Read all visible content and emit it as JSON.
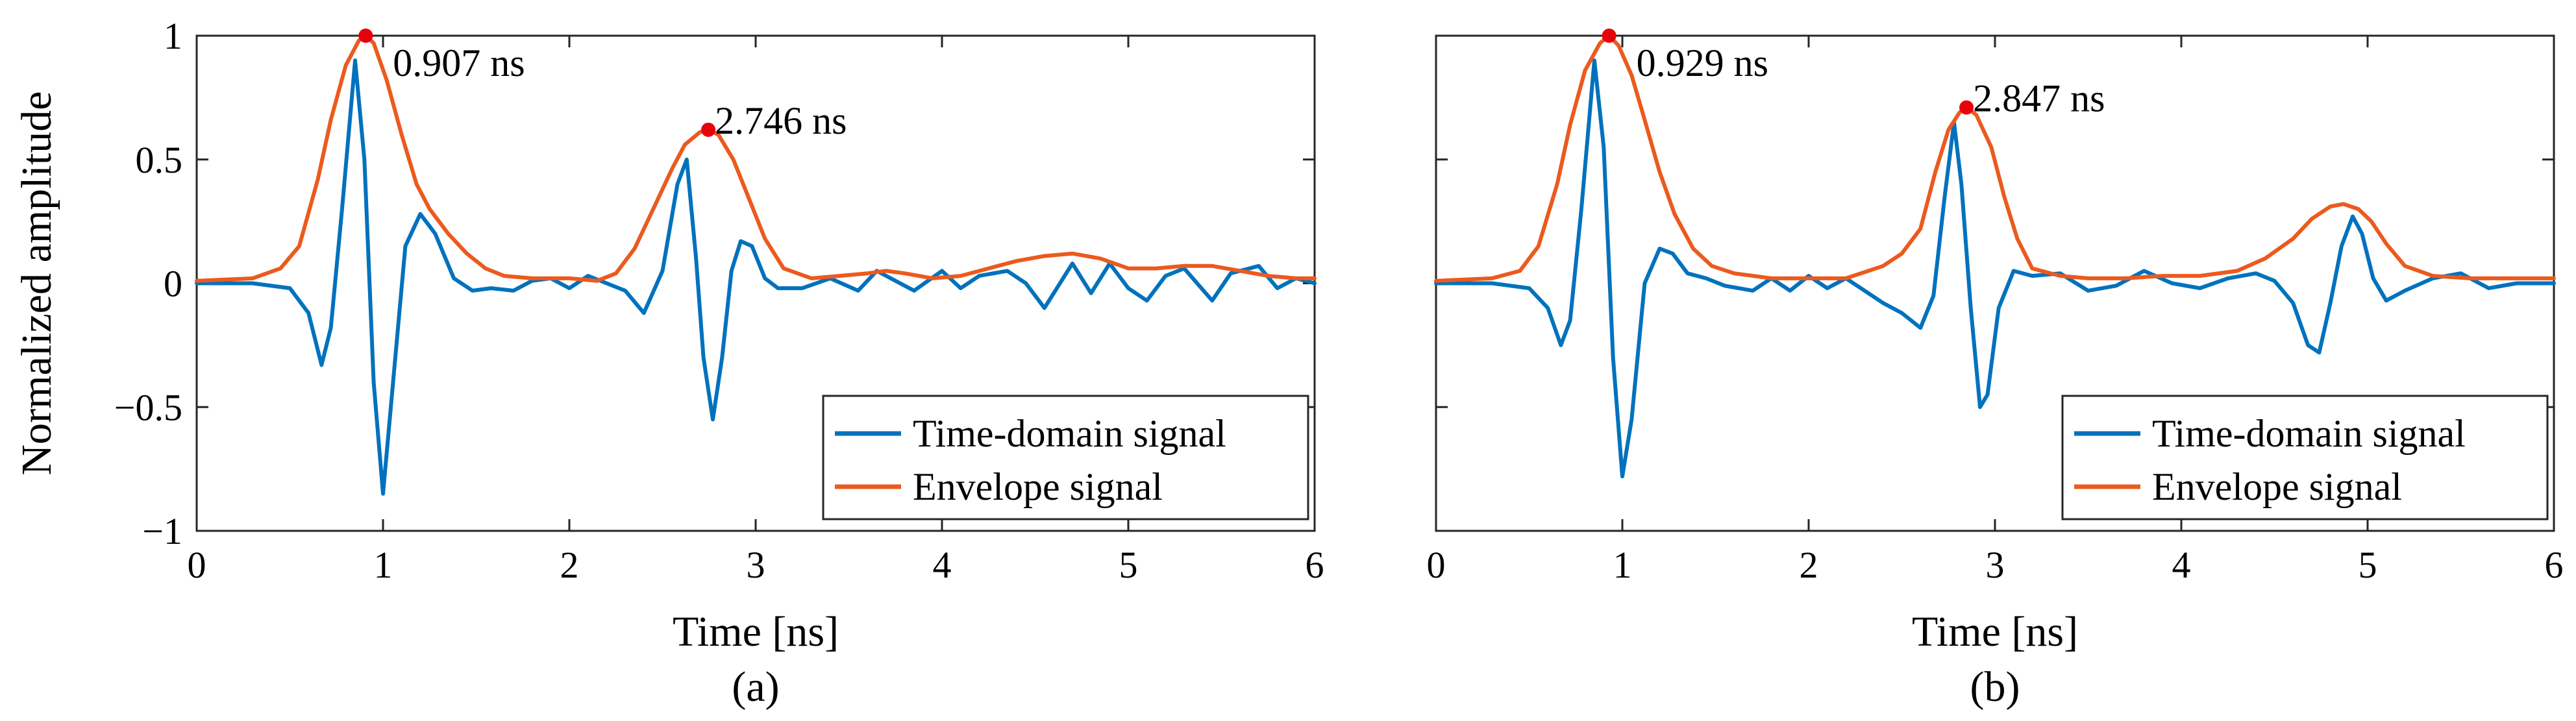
{
  "colors": {
    "time_domain": "#0072BD",
    "envelope": "#EB5A1E",
    "peak_marker": "#E8000B",
    "axis": "#262626"
  },
  "chart_data": [
    {
      "type": "line",
      "panel_label": "(a)",
      "xlabel": "Time [ns]",
      "ylabel": "Normalized amplitude",
      "xlim": [
        0,
        6
      ],
      "ylim": [
        -1,
        1
      ],
      "xticks": [
        "0",
        "1",
        "2",
        "3",
        "4",
        "5",
        "6"
      ],
      "yticks": [
        "−1",
        "−0.5",
        "0",
        "0.5",
        "1"
      ],
      "show_yticklabels": true,
      "grid": false,
      "legend_position": "bottom-right",
      "series": [
        {
          "name": "Time-domain signal",
          "x": [
            0,
            0.3,
            0.5,
            0.6,
            0.67,
            0.72,
            0.78,
            0.85,
            0.9,
            0.95,
            1.0,
            1.06,
            1.12,
            1.2,
            1.28,
            1.38,
            1.48,
            1.58,
            1.7,
            1.8,
            1.9,
            2.0,
            2.1,
            2.2,
            2.3,
            2.4,
            2.5,
            2.58,
            2.63,
            2.68,
            2.72,
            2.77,
            2.82,
            2.87,
            2.92,
            2.98,
            3.05,
            3.12,
            3.25,
            3.4,
            3.55,
            3.65,
            3.75,
            3.85,
            4.0,
            4.1,
            4.2,
            4.35,
            4.45,
            4.55,
            4.7,
            4.8,
            4.9,
            5.0,
            5.1,
            5.2,
            5.3,
            5.45,
            5.55,
            5.7,
            5.8,
            5.9,
            6.0
          ],
          "y": [
            0,
            0,
            -0.02,
            -0.12,
            -0.33,
            -0.18,
            0.3,
            0.9,
            0.5,
            -0.4,
            -0.85,
            -0.35,
            0.15,
            0.28,
            0.2,
            0.02,
            -0.03,
            -0.02,
            -0.03,
            0.01,
            0.02,
            -0.02,
            0.03,
            0.0,
            -0.03,
            -0.12,
            0.05,
            0.4,
            0.5,
            0.1,
            -0.3,
            -0.55,
            -0.3,
            0.05,
            0.17,
            0.15,
            0.02,
            -0.02,
            -0.02,
            0.02,
            -0.03,
            0.05,
            0.01,
            -0.03,
            0.05,
            -0.02,
            0.03,
            0.05,
            0.0,
            -0.1,
            0.08,
            -0.04,
            0.08,
            -0.02,
            -0.07,
            0.03,
            0.06,
            -0.07,
            0.04,
            0.07,
            -0.02,
            0.02,
            0.0
          ]
        },
        {
          "name": "Envelope signal",
          "x": [
            0,
            0.3,
            0.45,
            0.55,
            0.65,
            0.72,
            0.8,
            0.87,
            0.907,
            0.95,
            1.02,
            1.1,
            1.18,
            1.25,
            1.35,
            1.45,
            1.55,
            1.65,
            1.8,
            2.0,
            2.15,
            2.25,
            2.35,
            2.45,
            2.55,
            2.62,
            2.7,
            2.746,
            2.8,
            2.88,
            2.96,
            3.05,
            3.15,
            3.3,
            3.45,
            3.6,
            3.7,
            3.8,
            3.95,
            4.1,
            4.25,
            4.4,
            4.55,
            4.7,
            4.85,
            5.0,
            5.15,
            5.3,
            5.45,
            5.6,
            5.75,
            5.9,
            6.0
          ],
          "y": [
            0.01,
            0.02,
            0.06,
            0.15,
            0.42,
            0.66,
            0.88,
            0.98,
            1.0,
            0.97,
            0.82,
            0.6,
            0.4,
            0.3,
            0.2,
            0.12,
            0.06,
            0.03,
            0.02,
            0.02,
            0.01,
            0.04,
            0.14,
            0.3,
            0.46,
            0.56,
            0.61,
            0.62,
            0.6,
            0.5,
            0.35,
            0.18,
            0.06,
            0.02,
            0.03,
            0.04,
            0.05,
            0.04,
            0.02,
            0.03,
            0.06,
            0.09,
            0.11,
            0.12,
            0.1,
            0.06,
            0.06,
            0.07,
            0.07,
            0.05,
            0.03,
            0.02,
            0.02
          ]
        }
      ],
      "peaks": [
        {
          "x": 0.907,
          "y": 1.0,
          "label": "0.907 ns"
        },
        {
          "x": 2.746,
          "y": 0.62,
          "label": "2.746 ns"
        }
      ]
    },
    {
      "type": "line",
      "panel_label": "(b)",
      "xlabel": "Time [ns]",
      "ylabel": "",
      "xlim": [
        0,
        6
      ],
      "ylim": [
        -1,
        1
      ],
      "xticks": [
        "0",
        "1",
        "2",
        "3",
        "4",
        "5",
        "6"
      ],
      "yticks": [
        "−1",
        "−0.5",
        "0",
        "0.5",
        "1"
      ],
      "show_yticklabels": false,
      "grid": false,
      "legend_position": "bottom-right",
      "series": [
        {
          "name": "Time-domain signal",
          "x": [
            0,
            0.3,
            0.5,
            0.6,
            0.67,
            0.72,
            0.78,
            0.85,
            0.9,
            0.95,
            1.0,
            1.05,
            1.12,
            1.2,
            1.27,
            1.35,
            1.45,
            1.55,
            1.7,
            1.8,
            1.9,
            2.0,
            2.1,
            2.2,
            2.3,
            2.4,
            2.5,
            2.6,
            2.67,
            2.73,
            2.78,
            2.82,
            2.87,
            2.92,
            2.96,
            3.02,
            3.1,
            3.2,
            3.35,
            3.5,
            3.65,
            3.8,
            3.95,
            4.1,
            4.25,
            4.4,
            4.5,
            4.6,
            4.68,
            4.74,
            4.8,
            4.86,
            4.92,
            4.97,
            5.03,
            5.1,
            5.2,
            5.35,
            5.5,
            5.65,
            5.8,
            6.0
          ],
          "y": [
            0,
            0,
            -0.02,
            -0.1,
            -0.25,
            -0.15,
            0.3,
            0.9,
            0.55,
            -0.3,
            -0.78,
            -0.55,
            0.0,
            0.14,
            0.12,
            0.04,
            0.02,
            -0.01,
            -0.03,
            0.02,
            -0.03,
            0.03,
            -0.02,
            0.02,
            -0.03,
            -0.08,
            -0.12,
            -0.18,
            -0.05,
            0.35,
            0.65,
            0.4,
            -0.1,
            -0.5,
            -0.45,
            -0.1,
            0.05,
            0.03,
            0.04,
            -0.03,
            -0.01,
            0.05,
            0.0,
            -0.02,
            0.02,
            0.04,
            0.01,
            -0.08,
            -0.25,
            -0.28,
            -0.08,
            0.15,
            0.27,
            0.2,
            0.02,
            -0.07,
            -0.03,
            0.02,
            0.04,
            -0.02,
            0.0,
            0.0
          ]
        },
        {
          "name": "Envelope signal",
          "x": [
            0,
            0.3,
            0.45,
            0.55,
            0.65,
            0.72,
            0.8,
            0.88,
            0.929,
            0.98,
            1.05,
            1.12,
            1.2,
            1.28,
            1.38,
            1.48,
            1.6,
            1.8,
            2.0,
            2.2,
            2.4,
            2.5,
            2.6,
            2.68,
            2.75,
            2.81,
            2.847,
            2.9,
            2.98,
            3.05,
            3.12,
            3.2,
            3.35,
            3.5,
            3.7,
            3.9,
            4.1,
            4.3,
            4.45,
            4.6,
            4.7,
            4.8,
            4.87,
            4.95,
            5.02,
            5.1,
            5.2,
            5.35,
            5.55,
            5.75,
            6.0
          ],
          "y": [
            0.01,
            0.02,
            0.05,
            0.15,
            0.4,
            0.64,
            0.86,
            0.97,
            1.0,
            0.96,
            0.84,
            0.66,
            0.45,
            0.28,
            0.14,
            0.07,
            0.04,
            0.02,
            0.02,
            0.02,
            0.07,
            0.12,
            0.22,
            0.45,
            0.62,
            0.69,
            0.71,
            0.68,
            0.55,
            0.35,
            0.18,
            0.06,
            0.03,
            0.02,
            0.02,
            0.03,
            0.03,
            0.05,
            0.1,
            0.18,
            0.26,
            0.31,
            0.32,
            0.3,
            0.25,
            0.16,
            0.07,
            0.03,
            0.02,
            0.02,
            0.02
          ]
        }
      ],
      "peaks": [
        {
          "x": 0.929,
          "y": 1.0,
          "label": "0.929 ns"
        },
        {
          "x": 2.847,
          "y": 0.71,
          "label": "2.847 ns"
        }
      ]
    }
  ]
}
